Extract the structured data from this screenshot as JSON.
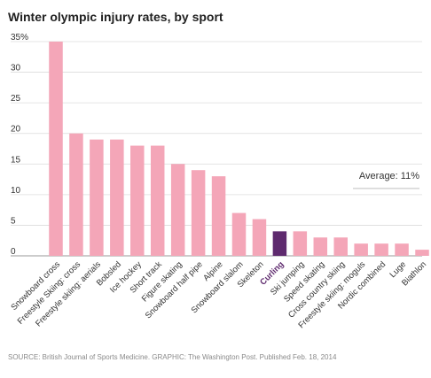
{
  "chart_data": {
    "type": "bar",
    "title": "Winter olympic injury rates, by sport",
    "xlabel": "",
    "ylabel": "",
    "ylim": [
      0,
      35
    ],
    "yticks": [
      "35%",
      "30",
      "25",
      "20",
      "15",
      "10",
      "5",
      "0"
    ],
    "ytick_values": [
      35,
      30,
      25,
      20,
      15,
      10,
      5,
      0
    ],
    "grid": true,
    "categories": [
      "Snowboard cross",
      "Freestyle Skiing: cross",
      "Freestyle skiing: aerials",
      "Bobsled",
      "Ice hockey",
      "Short track",
      "Figure skating",
      "Snowboard half pipe",
      "Alpine",
      "Snowboard slalom",
      "Skeleton",
      "Curling",
      "Ski jumping",
      "Speed skating",
      "Cross country skiing",
      "Freestyle skiing: moguls",
      "Nordic combined",
      "Luge",
      "Biathlon"
    ],
    "values": [
      35,
      20,
      19,
      19,
      18,
      18,
      15,
      14,
      13,
      7,
      6,
      4,
      4,
      3,
      3,
      2,
      2,
      2,
      1
    ],
    "highlight": "Curling",
    "average": {
      "label": "Average: 11%",
      "value": 11
    },
    "colors": {
      "bar": "#f4a6b8",
      "highlight": "#5e2a6e",
      "highlight_label": "#5e2a6e",
      "grid": "#dcdcdc",
      "axis_text": "#333333"
    }
  },
  "source": "SOURCE: British Journal of Sports Medicine. GRAPHIC: The Washington Post. Published Feb. 18, 2014"
}
